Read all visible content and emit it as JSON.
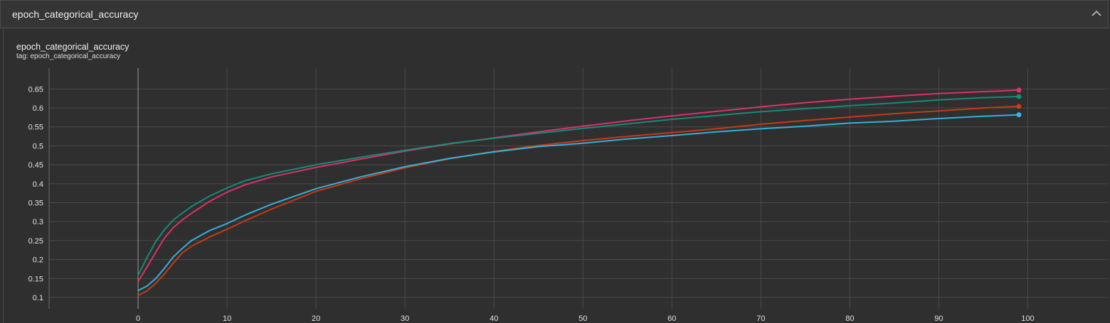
{
  "header": {
    "title": "epoch_categorical_accuracy",
    "collapse_icon": "chevron-up-icon"
  },
  "chart_data": {
    "type": "line",
    "title": "epoch_categorical_accuracy",
    "subtitle": "tag: epoch_categorical_accuracy",
    "xlabel": "",
    "ylabel": "",
    "xlim": [
      -10,
      109
    ],
    "ylim": [
      0.07,
      0.705
    ],
    "xticks": [
      0,
      10,
      20,
      30,
      40,
      50,
      60,
      70,
      80,
      90,
      100
    ],
    "yticks": [
      0.1,
      0.15,
      0.2,
      0.25,
      0.3,
      0.35,
      0.4,
      0.45,
      0.5,
      0.55,
      0.6,
      0.65
    ],
    "grid": true,
    "x": [
      0,
      1,
      2,
      3,
      4,
      5,
      6,
      8,
      10,
      12,
      15,
      20,
      25,
      30,
      35,
      40,
      45,
      50,
      55,
      60,
      65,
      70,
      75,
      80,
      85,
      90,
      95,
      99
    ],
    "series": [
      {
        "color": "#e6306c",
        "values": [
          0.142,
          0.18,
          0.22,
          0.258,
          0.285,
          0.305,
          0.322,
          0.353,
          0.378,
          0.397,
          0.418,
          0.443,
          0.465,
          0.486,
          0.505,
          0.521,
          0.537,
          0.552,
          0.566,
          0.579,
          0.591,
          0.603,
          0.614,
          0.623,
          0.631,
          0.638,
          0.643,
          0.647
        ]
      },
      {
        "color": "#12917a",
        "values": [
          0.158,
          0.205,
          0.248,
          0.28,
          0.305,
          0.323,
          0.34,
          0.367,
          0.389,
          0.408,
          0.426,
          0.45,
          0.47,
          0.488,
          0.506,
          0.52,
          0.533,
          0.546,
          0.558,
          0.57,
          0.58,
          0.59,
          0.598,
          0.606,
          0.613,
          0.621,
          0.627,
          0.63
        ]
      },
      {
        "color": "#cf3b14",
        "values": [
          0.105,
          0.117,
          0.138,
          0.163,
          0.192,
          0.218,
          0.235,
          0.259,
          0.28,
          0.302,
          0.333,
          0.38,
          0.413,
          0.442,
          0.466,
          0.485,
          0.501,
          0.514,
          0.525,
          0.535,
          0.545,
          0.557,
          0.567,
          0.576,
          0.585,
          0.592,
          0.6,
          0.604
        ]
      },
      {
        "color": "#35b6e6",
        "values": [
          0.118,
          0.13,
          0.15,
          0.178,
          0.208,
          0.23,
          0.25,
          0.276,
          0.295,
          0.317,
          0.346,
          0.387,
          0.418,
          0.445,
          0.467,
          0.484,
          0.498,
          0.507,
          0.518,
          0.527,
          0.537,
          0.545,
          0.552,
          0.56,
          0.565,
          0.572,
          0.578,
          0.582
        ]
      }
    ]
  }
}
